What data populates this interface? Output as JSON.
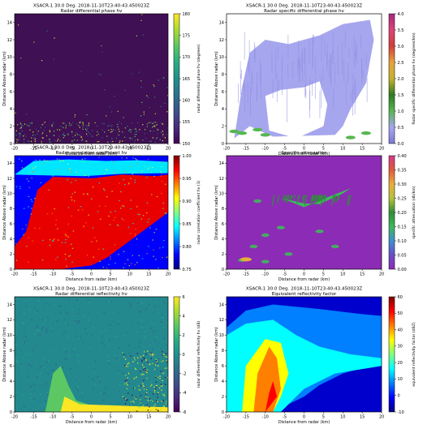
{
  "page": {
    "background": "#ffffff"
  },
  "chart_data": [
    {
      "type": "heatmap",
      "title": "XSACR-1 30.0 Deg. 2018-11-10T23:40:43.450023Z",
      "subtitle": "Radar differential phase hv",
      "xlabel": "Distance from radar (km)",
      "ylabel": "Distance Above radar (km)",
      "xlim": [
        -20,
        20
      ],
      "ylim": [
        0,
        15
      ],
      "x_ticks": [
        -20,
        -15,
        -10,
        -5,
        0,
        5,
        10,
        15,
        20
      ],
      "y_ticks": [
        0,
        2,
        4,
        6,
        8,
        10,
        12,
        14
      ],
      "colorbar": {
        "label": "radar differential phase hv (degrees)",
        "range": [
          150,
          180
        ],
        "ticks": [
          150,
          155,
          160,
          165,
          170,
          175,
          180
        ],
        "colormap": "viridis"
      },
      "field_description": "uniform dark purple (~150) with speckle near ground and right edge"
    },
    {
      "type": "heatmap",
      "title": "XSACR-1 30.0 Deg. 2018-11-10T23:40:43.450023Z",
      "subtitle": "Radar specific differential phase hv",
      "xlabel": "Distance from radar (km)",
      "ylabel": "Distance Above radar (km)",
      "xlim": [
        -20,
        20
      ],
      "ylim": [
        0,
        15
      ],
      "x_ticks": [
        -20,
        -15,
        -10,
        -5,
        0,
        5,
        10,
        15,
        20
      ],
      "y_ticks": [
        0,
        2,
        4,
        6,
        8,
        10,
        12,
        14
      ],
      "colorbar": {
        "label": "Radar specific differential phase hv (degrees/km)",
        "range": [
          0,
          4
        ],
        "ticks": [
          0.0,
          0.5,
          1.0,
          1.5,
          2.0,
          2.5,
          3.0,
          3.5,
          4.0
        ],
        "colormap": "pyart_RefDiff"
      },
      "field_description": "light lavender band ~6-12 km, low values, green spots near ground"
    },
    {
      "type": "heatmap",
      "title": "XSACR-1 30.0 Deg. 2018-11-10T23:40:43.450023Z",
      "subtitle": "Radar correlation coefficient hv",
      "xlabel": "Distance from radar (km)",
      "ylabel": "Distance Above radar (km)",
      "xlim": [
        -20,
        20
      ],
      "ylim": [
        0,
        15
      ],
      "x_ticks": [
        -20,
        -15,
        -10,
        -5,
        0,
        5,
        10,
        15,
        20
      ],
      "y_ticks": [
        0,
        2,
        4,
        6,
        8,
        10,
        12,
        14
      ],
      "colorbar": {
        "label": "radar correlation coefficient hv (1)",
        "range": [
          0.75,
          1.0
        ],
        "ticks": [
          0.75,
          0.8,
          0.85,
          0.9,
          0.95,
          1.0
        ],
        "colormap": "jet"
      },
      "field_description": "red (~0.98) cloud region above sloping boundary, blue below"
    },
    {
      "type": "heatmap",
      "title": "",
      "subtitle": "Specific attenuation",
      "xlabel": "Distance from radar (km)",
      "ylabel": "Distance Above radar (km)",
      "xlim": [
        -20,
        20
      ],
      "ylim": [
        0,
        15
      ],
      "x_ticks": [
        -20,
        -15,
        -10,
        -5,
        0,
        5,
        10,
        15,
        20
      ],
      "y_ticks": [
        0,
        2,
        4,
        6,
        8,
        10,
        12,
        14
      ],
      "colorbar": {
        "label": "specific attenuation (db/km)",
        "range": [
          0.0,
          0.4
        ],
        "ticks": [
          0.0,
          0.05,
          0.1,
          0.15,
          0.2,
          0.25,
          0.3,
          0.35,
          0.4
        ],
        "colormap": "pyart_Carbone"
      },
      "field_description": "uniform magenta background (~0) with green streaks"
    },
    {
      "type": "heatmap",
      "title": "XSACR-1 30.0 Deg. 2018-11-10T23:40:43.450023Z",
      "subtitle": "Radar differential reflectivity hv",
      "xlabel": "Distance from radar (km)",
      "ylabel": "Distance Above radar (km)",
      "xlim": [
        -20,
        20
      ],
      "ylim": [
        0,
        15
      ],
      "x_ticks": [
        -20,
        -15,
        -10,
        -5,
        0,
        5,
        10,
        15,
        20
      ],
      "y_ticks": [
        0,
        2,
        4,
        6,
        8,
        10,
        12,
        14
      ],
      "colorbar": {
        "label": "radar differential reflectivity hv (dB)",
        "range": [
          -6,
          6
        ],
        "ticks": [
          -6,
          -4,
          -2,
          0,
          2,
          4,
          6
        ],
        "colormap": "viridis"
      },
      "field_description": "teal (~0 dB) across, yellow-green plume rising from ground near -8 km"
    },
    {
      "type": "heatmap",
      "title": "XSACR-1 30.0 Deg. 2018-11-10T23:40:43.450023Z",
      "subtitle": "Equivalent reflectivity factor",
      "xlabel": "Distance from radar (km)",
      "ylabel": "Distance Above radar (km)",
      "xlim": [
        -20,
        20
      ],
      "ylim": [
        0,
        15
      ],
      "x_ticks": [
        -20,
        -15,
        -10,
        -5,
        0,
        5,
        10,
        15,
        20
      ],
      "y_ticks": [
        0,
        2,
        4,
        6,
        8,
        10,
        12,
        14
      ],
      "colorbar": {
        "label": "equivalent reflectivity factor (dBZ)",
        "range": [
          -10,
          60
        ],
        "ticks": [
          -10,
          0,
          10,
          20,
          30,
          40,
          50,
          60
        ],
        "colormap": "jet"
      },
      "field_description": "blue background, cyan/green cloud, orange-red core near -8 km below 10 km"
    }
  ]
}
